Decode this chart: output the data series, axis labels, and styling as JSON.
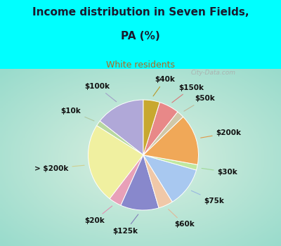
{
  "labels": [
    "$100k",
    "$10k",
    "> $200k",
    "$20k",
    "$125k",
    "$60k",
    "$75k",
    "$30k",
    "$200k",
    "$50k",
    "$150k",
    "$40k"
  ],
  "values": [
    13.5,
    1.5,
    22.0,
    3.5,
    10.5,
    4.0,
    11.0,
    1.5,
    14.0,
    2.0,
    5.5,
    4.5
  ],
  "colors": [
    "#b0a8d8",
    "#b8d8a0",
    "#f0f0a0",
    "#e8a0b8",
    "#8888cc",
    "#f0c8a8",
    "#a8c8f0",
    "#c0e8a0",
    "#f0a858",
    "#d0c8a8",
    "#e88888",
    "#c8a830"
  ],
  "title_line1": "Income distribution in Seven Fields,",
  "title_line2": "PA (%)",
  "subtitle": "White residents",
  "bg_color_top": "#00ffff",
  "title_color": "#1a1a2e",
  "subtitle_color": "#b06820",
  "startangle": 90,
  "label_fontsize": 7.5,
  "line_colors": [
    "#a0a0c8",
    "#b0c8a0",
    "#d0d090",
    "#e090b0",
    "#8080b8",
    "#e0b898",
    "#98b8e0",
    "#a0d898",
    "#e09848",
    "#c0b898",
    "#d87878",
    "#b89828"
  ]
}
